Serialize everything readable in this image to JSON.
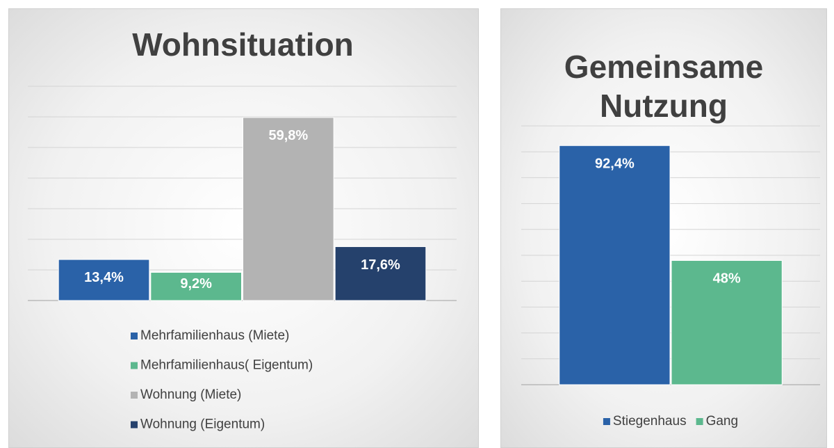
{
  "chart_data": [
    {
      "type": "bar",
      "title": "Wohnsituation",
      "series": [
        {
          "name": "Mehrfamilienhaus (Miete)",
          "color": "#2a62a8",
          "values": [
            13.4
          ],
          "value_labels": [
            "13,4%"
          ]
        },
        {
          "name": "Mehrfamilienhaus( Eigentum)",
          "color": "#5cb88e",
          "values": [
            9.2
          ],
          "value_labels": [
            "9,2%"
          ]
        },
        {
          "name": "Wohnung (Miete)",
          "color": "#b3b3b3",
          "values": [
            59.8
          ],
          "value_labels": [
            "59,8%"
          ]
        },
        {
          "name": "Wohnung (Eigentum)",
          "color": "#25416c",
          "values": [
            17.6
          ],
          "value_labels": [
            "17,6%"
          ]
        }
      ],
      "ylim": [
        0,
        70
      ],
      "yticks": [
        0,
        10,
        20,
        30,
        40,
        50,
        60,
        70
      ],
      "grid": true,
      "legend": "bottom"
    },
    {
      "type": "bar",
      "title": "Gemeinsame Nutzung",
      "series": [
        {
          "name": "Stiegenhaus",
          "color": "#2a62a8",
          "values": [
            92.4
          ],
          "value_labels": [
            "92,4%"
          ]
        },
        {
          "name": "Gang",
          "color": "#5cb88e",
          "values": [
            48
          ],
          "value_labels": [
            "48%"
          ]
        }
      ],
      "ylim": [
        0,
        100
      ],
      "yticks": [
        0,
        10,
        20,
        30,
        40,
        50,
        60,
        70,
        80,
        90,
        100
      ],
      "grid": true,
      "legend": "bottom"
    }
  ]
}
